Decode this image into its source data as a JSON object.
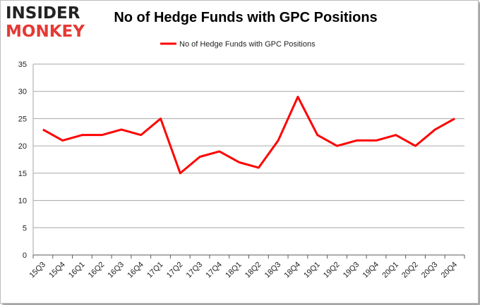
{
  "logo": {
    "line1": "INSIDER",
    "line2": "MONKEY"
  },
  "chart_data": {
    "type": "line",
    "title": "No of Hedge Funds with GPC Positions",
    "xlabel": "",
    "ylabel": "",
    "ylim": [
      0,
      35
    ],
    "yticks": [
      0,
      5,
      10,
      15,
      20,
      25,
      30,
      35
    ],
    "grid": true,
    "legend_position": "top-center",
    "categories": [
      "15Q3",
      "15Q4",
      "16Q1",
      "16Q2",
      "16Q3",
      "16Q4",
      "17Q1",
      "17Q2",
      "17Q3",
      "17Q4",
      "18Q1",
      "18Q2",
      "18Q3",
      "18Q4",
      "19Q1",
      "19Q2",
      "19Q3",
      "19Q4",
      "20Q1",
      "20Q2",
      "20Q3",
      "20Q4"
    ],
    "series": [
      {
        "name": "No of Hedge Funds with GPC Positions",
        "color": "#ff0000",
        "values": [
          23,
          21,
          22,
          22,
          23,
          22,
          25,
          15,
          18,
          19,
          17,
          16,
          21,
          29,
          22,
          20,
          21,
          21,
          22,
          20,
          23,
          25
        ]
      }
    ]
  }
}
